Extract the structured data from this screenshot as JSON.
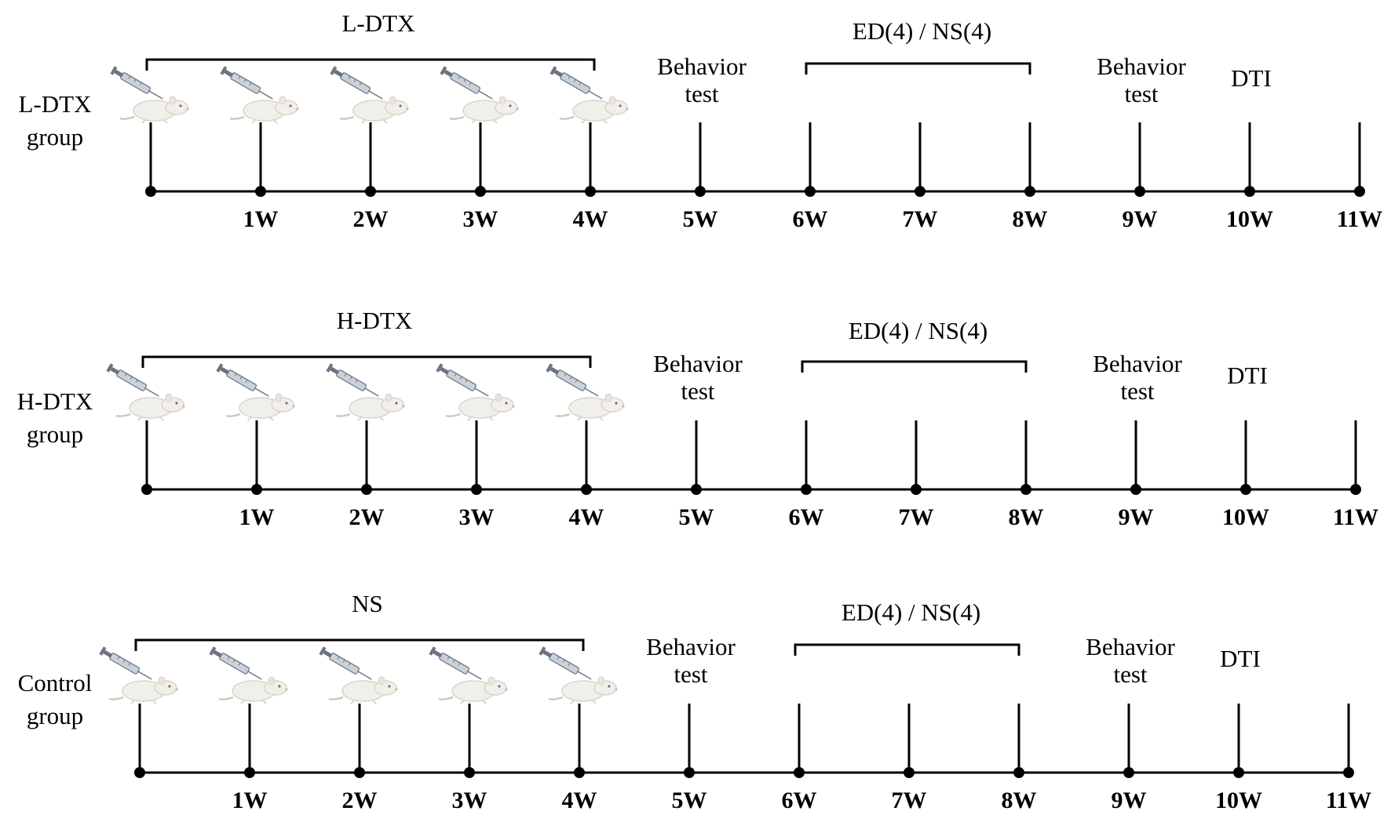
{
  "colors": {
    "ink": "#000000",
    "rat_body": "#f1efe9",
    "rat_shadow": "#d9d5cc",
    "syringe": "#9aa4b0"
  },
  "icon": "rat-with-syringe-icon",
  "rows": [
    {
      "group_label": [
        "L-DTX",
        "group"
      ],
      "injection_label": "L-DTX",
      "bracket_label": "ED(4) / NS(4)",
      "events": [
        {
          "week_index": 5,
          "lines": [
            "Behavior",
            "test"
          ]
        },
        {
          "week_index": 9,
          "lines": [
            "Behavior",
            "test"
          ]
        },
        {
          "week_index": 10,
          "lines": [
            "DTI"
          ]
        }
      ],
      "injection_weeks": [
        0,
        1,
        2,
        3,
        4
      ],
      "weeks": [
        "",
        "1W",
        "2W",
        "3W",
        "4W",
        "5W",
        "6W",
        "7W",
        "8W",
        "9W",
        "10W",
        "11W"
      ]
    },
    {
      "group_label": [
        "H-DTX",
        "group"
      ],
      "injection_label": "H-DTX",
      "bracket_label": "ED(4) / NS(4)",
      "events": [
        {
          "week_index": 5,
          "lines": [
            "Behavior",
            "test"
          ]
        },
        {
          "week_index": 9,
          "lines": [
            "Behavior",
            "test"
          ]
        },
        {
          "week_index": 10,
          "lines": [
            "DTI"
          ]
        }
      ],
      "injection_weeks": [
        0,
        1,
        2,
        3,
        4
      ],
      "weeks": [
        "",
        "1W",
        "2W",
        "3W",
        "4W",
        "5W",
        "6W",
        "7W",
        "8W",
        "9W",
        "10W",
        "11W"
      ]
    },
    {
      "group_label": [
        "Control",
        "group"
      ],
      "injection_label": "NS",
      "bracket_label": "ED(4) / NS(4)",
      "events": [
        {
          "week_index": 5,
          "lines": [
            "Behavior",
            "test"
          ]
        },
        {
          "week_index": 9,
          "lines": [
            "Behavior",
            "test"
          ]
        },
        {
          "week_index": 10,
          "lines": [
            "DTI"
          ]
        }
      ],
      "injection_weeks": [
        0,
        1,
        2,
        3,
        4
      ],
      "weeks": [
        "",
        "1W",
        "2W",
        "3W",
        "4W",
        "5W",
        "6W",
        "7W",
        "8W",
        "9W",
        "10W",
        "11W"
      ]
    }
  ]
}
